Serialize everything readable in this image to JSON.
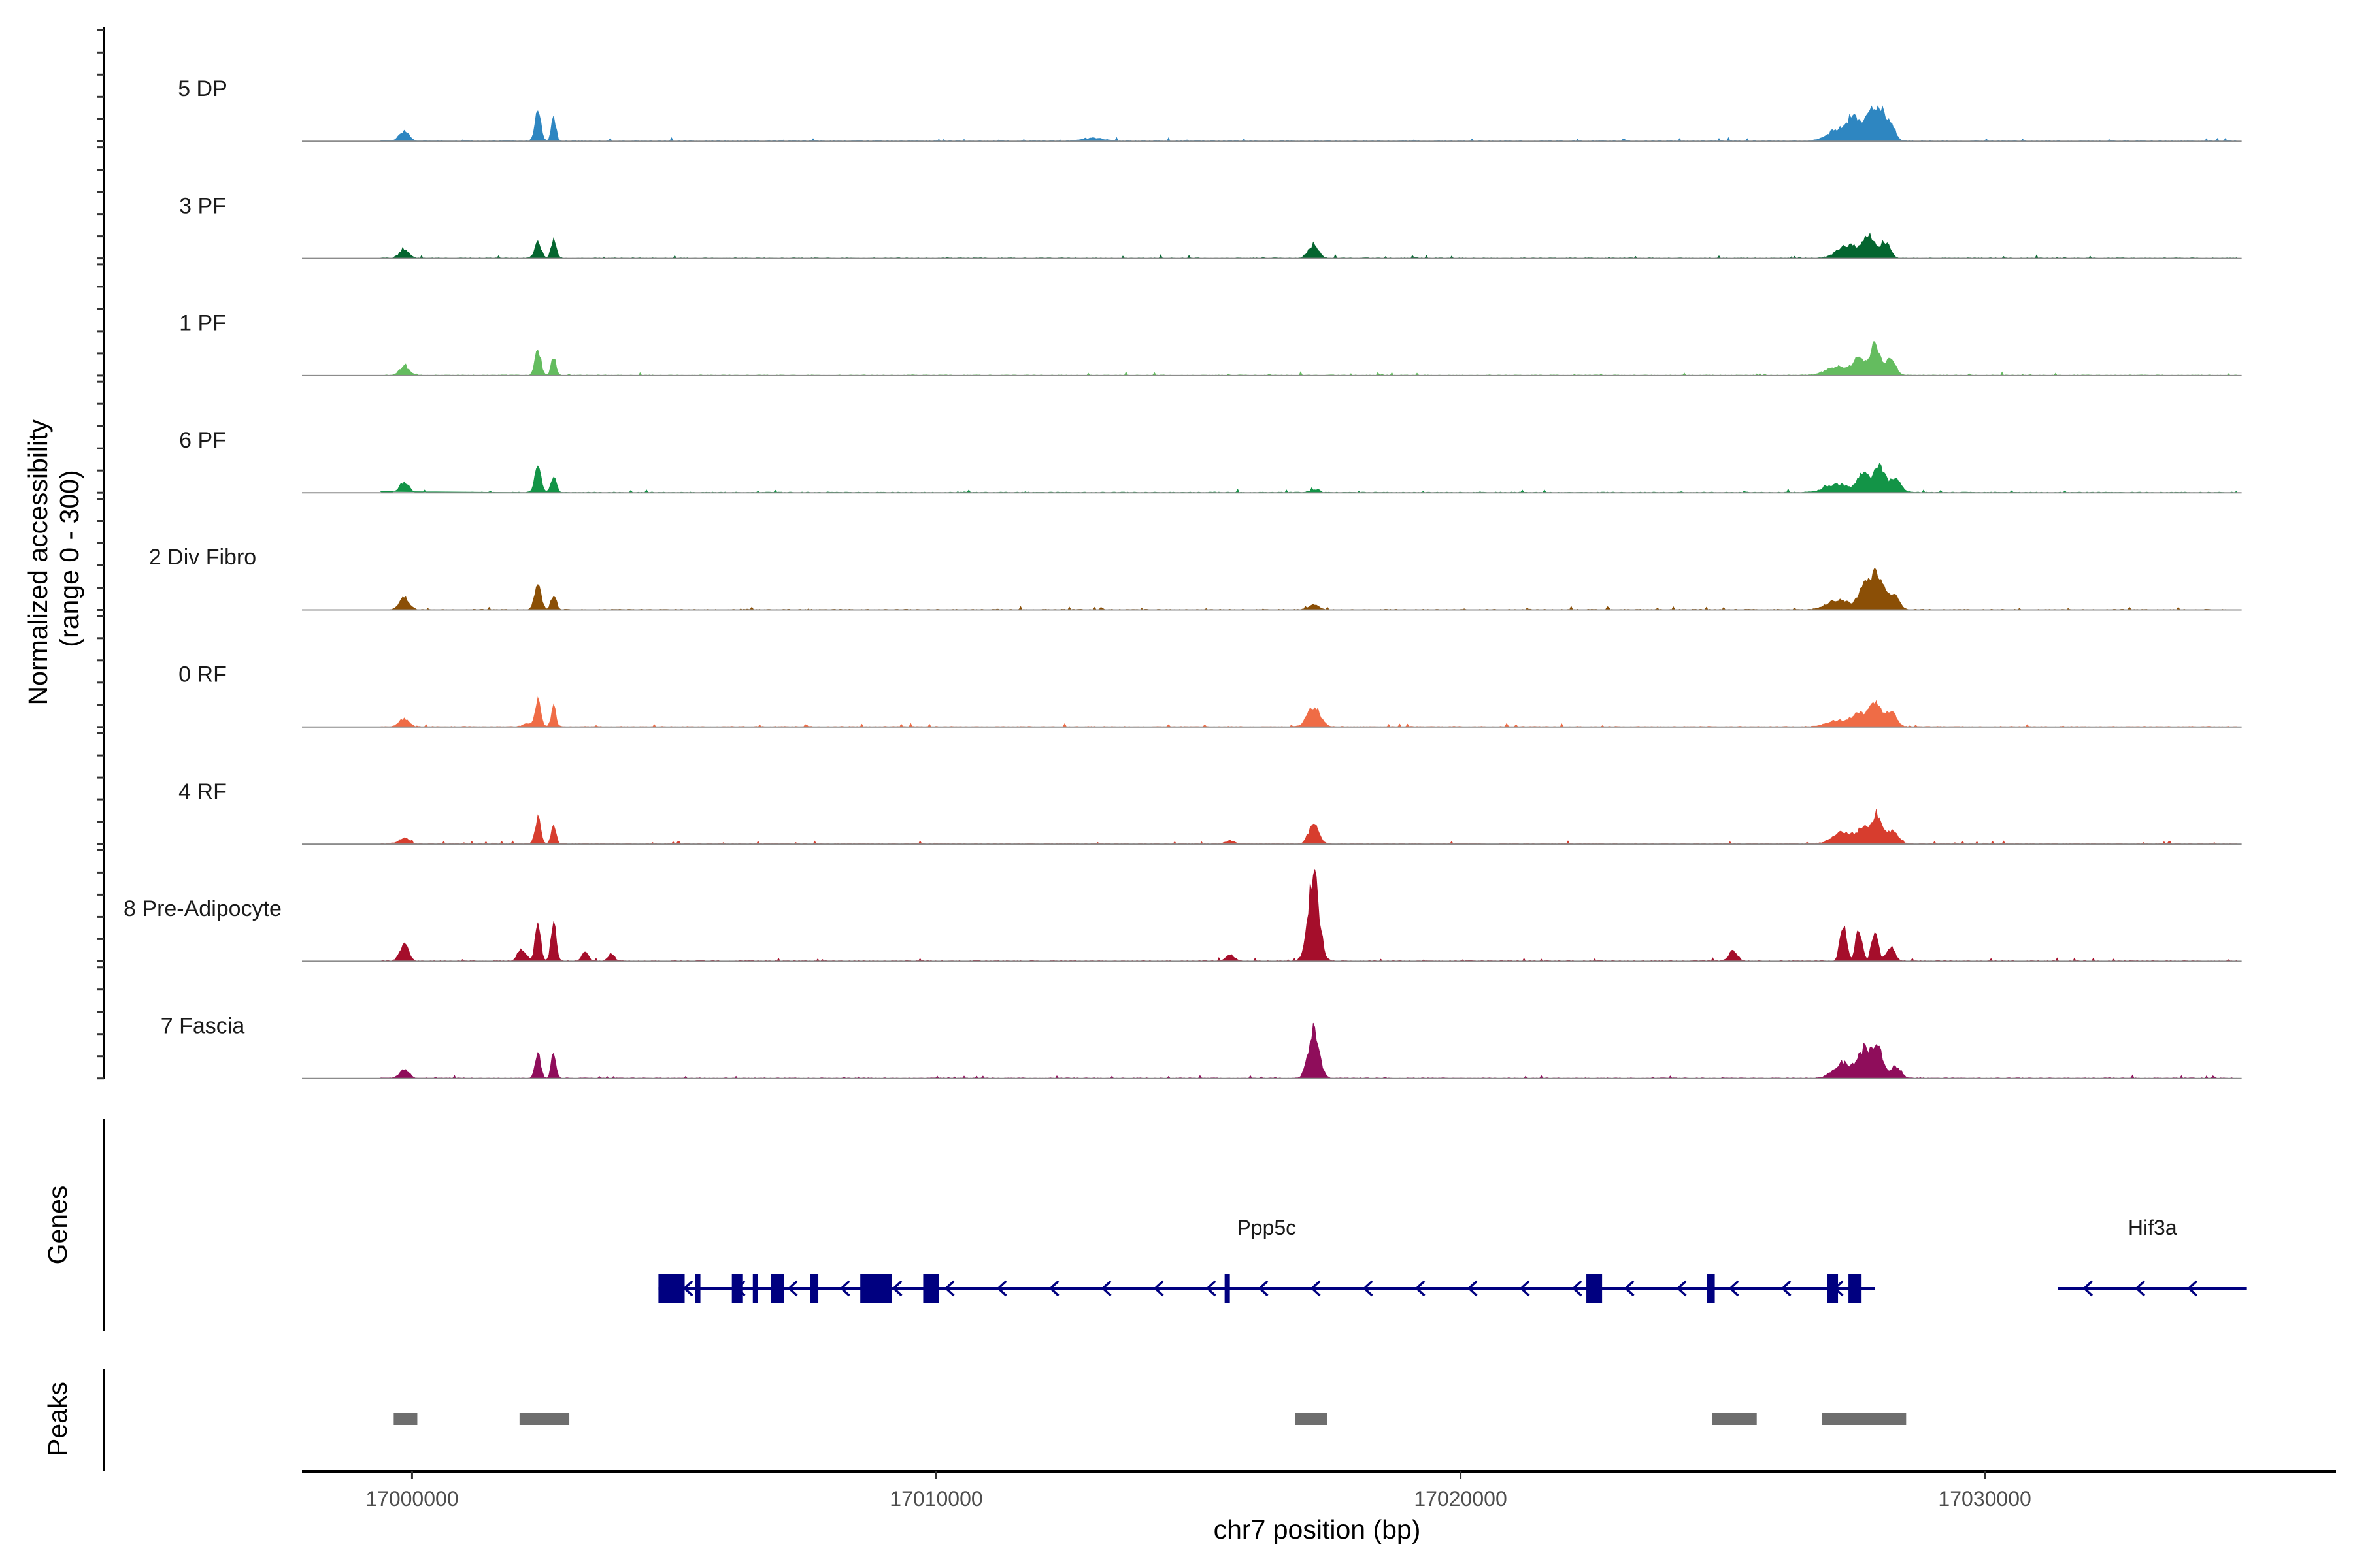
{
  "chart_data": {
    "type": "area",
    "subtype": "genome-coverage-tracks",
    "ylabel": "Normalized accessibility\n(range 0 - 300)",
    "xlabel": "chr7 position (bp)",
    "xlim": [
      16997900,
      17036700
    ],
    "ylim": [
      0,
      300
    ],
    "x_ticks": [
      17000000,
      17010000,
      17020000,
      17030000
    ],
    "x_tick_labels": [
      "17000000",
      "17010000",
      "17020000",
      "17030000"
    ],
    "track_labels": {
      "genes": "Genes",
      "peaks": "Peaks"
    },
    "series": [
      {
        "name": "5 DP",
        "color": "#2E86C1",
        "peaks": [
          [
            16999850,
            35,
            90
          ],
          [
            17002400,
            105,
            55
          ],
          [
            17002700,
            80,
            45
          ],
          [
            17013000,
            10,
            200
          ],
          [
            17027200,
            40,
            200
          ],
          [
            17027500,
            75,
            110
          ],
          [
            17027800,
            92,
            110
          ],
          [
            17028000,
            95,
            90
          ],
          [
            17028200,
            60,
            90
          ]
        ]
      },
      {
        "name": "3 PF",
        "color": "#04652F",
        "peaks": [
          [
            16999850,
            30,
            90
          ],
          [
            17002400,
            55,
            60
          ],
          [
            17002700,
            62,
            50
          ],
          [
            17017200,
            48,
            90
          ],
          [
            17027400,
            45,
            200
          ],
          [
            17027800,
            75,
            110
          ],
          [
            17028100,
            55,
            90
          ]
        ]
      },
      {
        "name": "1 PF",
        "color": "#64BC5F",
        "peaks": [
          [
            16999850,
            32,
            90
          ],
          [
            17002400,
            90,
            55
          ],
          [
            17002700,
            66,
            45
          ],
          [
            17027200,
            30,
            220
          ],
          [
            17027600,
            55,
            110
          ],
          [
            17027900,
            112,
            90
          ],
          [
            17028200,
            55,
            100
          ]
        ]
      },
      {
        "name": "6 PF",
        "color": "#139447",
        "peaks": [
          [
            16999850,
            34,
            90
          ],
          [
            17002400,
            88,
            60
          ],
          [
            17002700,
            58,
            50
          ],
          [
            17017200,
            8,
            90
          ],
          [
            17027200,
            30,
            220
          ],
          [
            17027700,
            70,
            110
          ],
          [
            17028000,
            90,
            100
          ],
          [
            17028300,
            45,
            100
          ]
        ]
      },
      {
        "name": "2 Div Fibro",
        "color": "#8B4F06",
        "peaks": [
          [
            16999850,
            42,
            90
          ],
          [
            17002400,
            88,
            60
          ],
          [
            17002700,
            52,
            50
          ],
          [
            17017200,
            16,
            90
          ],
          [
            17027200,
            35,
            200
          ],
          [
            17027700,
            80,
            110
          ],
          [
            17027950,
            128,
            110
          ],
          [
            17028250,
            55,
            100
          ]
        ]
      },
      {
        "name": "0 RF",
        "color": "#EF6C46",
        "peaks": [
          [
            16999850,
            28,
            90
          ],
          [
            17002200,
            12,
            80
          ],
          [
            17002400,
            85,
            55
          ],
          [
            17002700,
            68,
            45
          ],
          [
            17017200,
            70,
            120
          ],
          [
            17027200,
            22,
            200
          ],
          [
            17027600,
            42,
            120
          ],
          [
            17027900,
            82,
            110
          ],
          [
            17028200,
            55,
            100
          ]
        ]
      },
      {
        "name": "4 RF",
        "color": "#D73D2E",
        "peaks": [
          [
            16999850,
            22,
            90
          ],
          [
            17002400,
            90,
            55
          ],
          [
            17002700,
            62,
            45
          ],
          [
            17015600,
            12,
            80
          ],
          [
            17017200,
            70,
            90
          ],
          [
            17027300,
            40,
            200
          ],
          [
            17027700,
            55,
            110
          ],
          [
            17027950,
            95,
            100
          ],
          [
            17028250,
            45,
            100
          ]
        ]
      },
      {
        "name": "8 Pre-Adipocyte",
        "color": "#A50E2B",
        "peaks": [
          [
            16999850,
            60,
            80
          ],
          [
            17002100,
            40,
            80
          ],
          [
            17002400,
            135,
            50
          ],
          [
            17002700,
            125,
            50
          ],
          [
            17003300,
            30,
            60
          ],
          [
            17003800,
            25,
            60
          ],
          [
            17015600,
            22,
            80
          ],
          [
            17017200,
            300,
            100
          ],
          [
            17025200,
            35,
            80
          ],
          [
            17027300,
            130,
            60
          ],
          [
            17027600,
            115,
            60
          ],
          [
            17027900,
            100,
            60
          ],
          [
            17028200,
            50,
            80
          ]
        ]
      },
      {
        "name": "7 Fascia",
        "color": "#8F0D5B",
        "peaks": [
          [
            16999850,
            28,
            90
          ],
          [
            17002400,
            80,
            55
          ],
          [
            17002700,
            85,
            45
          ],
          [
            17017200,
            170,
            100
          ],
          [
            17027300,
            55,
            180
          ],
          [
            17027700,
            90,
            110
          ],
          [
            17027950,
            115,
            100
          ],
          [
            17028300,
            40,
            100
          ]
        ]
      }
    ],
    "genes": {
      "color": "#000080",
      "items": [
        {
          "name": "Ppp5c",
          "strand": "-",
          "start": 17004700,
          "end": 17027900,
          "exons": [
            [
              17004700,
              17005200
            ],
            [
              17005400,
              17005500
            ],
            [
              17006100,
              17006300
            ],
            [
              17006500,
              17006600
            ],
            [
              17006850,
              17007100
            ],
            [
              17007600,
              17007750
            ],
            [
              17008550,
              17009150
            ],
            [
              17009750,
              17010050
            ],
            [
              17015500,
              17015600
            ],
            [
              17022400,
              17022700
            ],
            [
              17024700,
              17024850
            ],
            [
              17027000,
              17027200
            ],
            [
              17027400,
              17027650
            ]
          ]
        },
        {
          "name": "Hif3a",
          "strand": "-",
          "start": 17031400,
          "end": 17035000,
          "exons": []
        }
      ]
    },
    "peaks_track": {
      "color": "#6E6E6E",
      "regions": [
        [
          16999650,
          17000100
        ],
        [
          17002050,
          17003000
        ],
        [
          17016850,
          17017450
        ],
        [
          17024800,
          17025650
        ],
        [
          17026900,
          17028500
        ]
      ]
    }
  }
}
